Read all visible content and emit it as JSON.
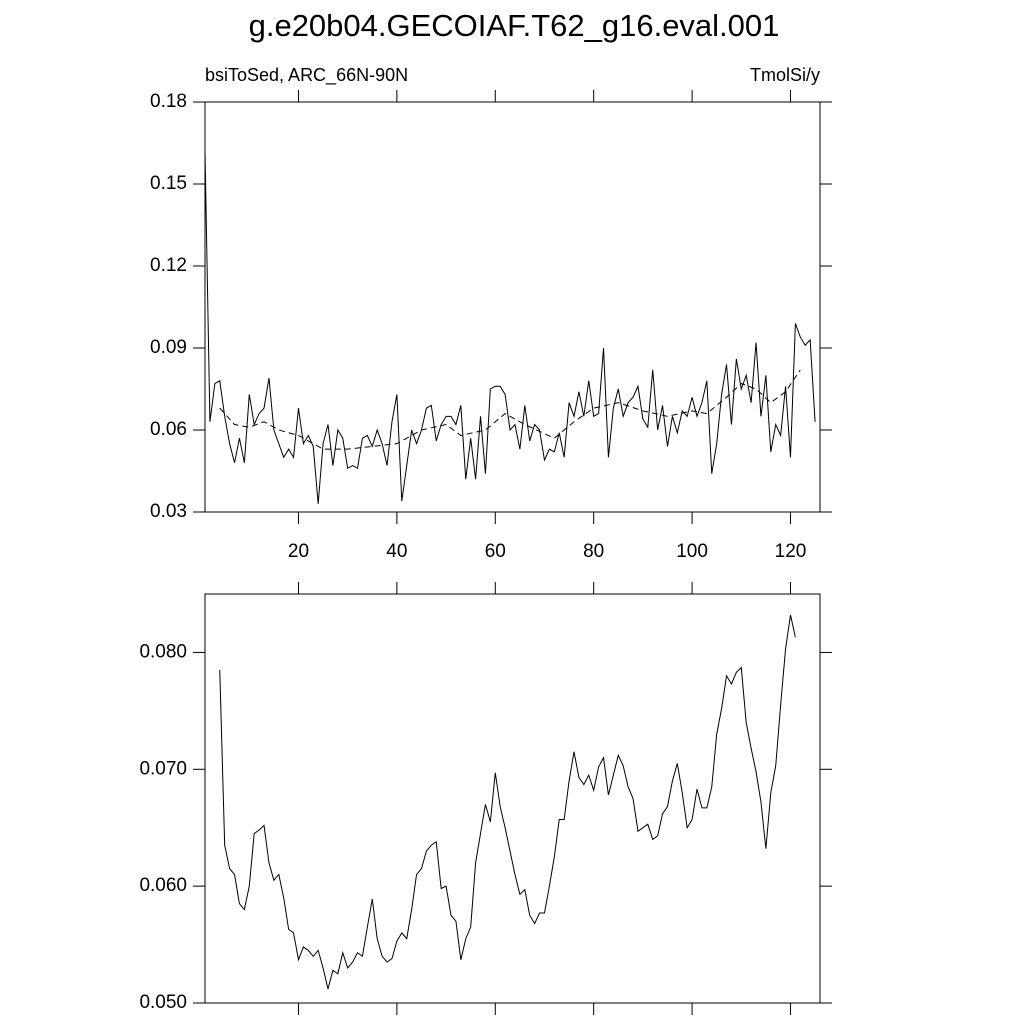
{
  "chart_data": [
    {
      "type": "line",
      "title": "g.e20b04.GECOIAF.T62_g16.eval.001",
      "subtitle_left": "bsiToSed, ARC_66N-90N",
      "subtitle_right": "TmolSi/y",
      "xlim": [
        1,
        126
      ],
      "ylim": [
        0.03,
        0.18
      ],
      "xticks": [
        20,
        40,
        60,
        80,
        100,
        120
      ],
      "yticks": [
        0.03,
        0.06,
        0.09,
        0.12,
        0.15,
        0.18
      ],
      "series": [
        {
          "color": "#000000",
          "dashed": false,
          "x": [
            1,
            2,
            3,
            4,
            5,
            6,
            7,
            8,
            9,
            10,
            11,
            12,
            13,
            14,
            15,
            16,
            17,
            18,
            19,
            20,
            21,
            22,
            23,
            24,
            25,
            26,
            27,
            28,
            29,
            30,
            31,
            32,
            33,
            34,
            35,
            36,
            37,
            38,
            39,
            40,
            41,
            42,
            43,
            44,
            45,
            46,
            47,
            48,
            49,
            50,
            51,
            52,
            53,
            54,
            55,
            56,
            57,
            58,
            59,
            60,
            61,
            62,
            63,
            64,
            65,
            66,
            67,
            68,
            69,
            70,
            71,
            72,
            73,
            74,
            75,
            76,
            77,
            78,
            79,
            80,
            81,
            82,
            83,
            84,
            85,
            86,
            87,
            88,
            89,
            90,
            91,
            92,
            93,
            94,
            95,
            96,
            97,
            98,
            99,
            100,
            101,
            102,
            103,
            104,
            105,
            106,
            107,
            108,
            109,
            110,
            111,
            112,
            113,
            114,
            115,
            116,
            117,
            118,
            119,
            120,
            121,
            122,
            123,
            124,
            125
          ],
          "values": [
            0.162,
            0.063,
            0.077,
            0.078,
            0.065,
            0.055,
            0.048,
            0.057,
            0.048,
            0.073,
            0.062,
            0.066,
            0.068,
            0.079,
            0.06,
            0.055,
            0.05,
            0.053,
            0.05,
            0.068,
            0.055,
            0.058,
            0.054,
            0.033,
            0.055,
            0.062,
            0.047,
            0.06,
            0.057,
            0.046,
            0.047,
            0.046,
            0.057,
            0.058,
            0.054,
            0.06,
            0.055,
            0.047,
            0.063,
            0.073,
            0.034,
            0.047,
            0.06,
            0.055,
            0.06,
            0.068,
            0.069,
            0.056,
            0.062,
            0.065,
            0.065,
            0.062,
            0.069,
            0.042,
            0.057,
            0.042,
            0.065,
            0.044,
            0.075,
            0.076,
            0.076,
            0.073,
            0.06,
            0.062,
            0.053,
            0.069,
            0.056,
            0.062,
            0.06,
            0.049,
            0.053,
            0.052,
            0.059,
            0.05,
            0.07,
            0.065,
            0.074,
            0.065,
            0.078,
            0.065,
            0.066,
            0.09,
            0.05,
            0.068,
            0.075,
            0.065,
            0.07,
            0.072,
            0.076,
            0.064,
            0.061,
            0.082,
            0.06,
            0.069,
            0.054,
            0.065,
            0.059,
            0.067,
            0.065,
            0.072,
            0.065,
            0.07,
            0.078,
            0.044,
            0.055,
            0.073,
            0.084,
            0.062,
            0.086,
            0.075,
            0.08,
            0.07,
            0.092,
            0.065,
            0.08,
            0.052,
            0.062,
            0.058,
            0.076,
            0.05,
            0.099,
            0.094,
            0.091,
            0.093,
            0.063
          ]
        },
        {
          "color": "#000000",
          "dashed": true,
          "x": [
            4,
            7,
            10,
            13,
            16,
            20,
            25,
            30,
            35,
            40,
            45,
            50,
            53,
            58,
            62,
            66,
            72,
            76,
            80,
            85,
            90,
            95,
            100,
            103,
            107,
            110,
            113,
            116,
            119,
            122
          ],
          "values": [
            0.068,
            0.062,
            0.061,
            0.063,
            0.06,
            0.058,
            0.053,
            0.053,
            0.054,
            0.055,
            0.06,
            0.062,
            0.058,
            0.06,
            0.066,
            0.062,
            0.057,
            0.063,
            0.068,
            0.07,
            0.067,
            0.065,
            0.067,
            0.066,
            0.072,
            0.077,
            0.075,
            0.07,
            0.074,
            0.082
          ]
        }
      ]
    },
    {
      "type": "line",
      "xlim": [
        1,
        126
      ],
      "ylim": [
        0.05,
        0.085
      ],
      "xticks": [
        20,
        40,
        60,
        80,
        100,
        120
      ],
      "yticks": [
        {
          "value": 0.05,
          "label": "0.050"
        },
        {
          "value": 0.06,
          "label": "0.060"
        },
        {
          "value": 0.07,
          "label": "0.070"
        },
        {
          "value": 0.08,
          "label": "0.080"
        }
      ],
      "series": [
        {
          "color": "#000000",
          "dashed": false,
          "x": [
            4,
            5,
            6,
            7,
            8,
            9,
            10,
            11,
            12,
            13,
            14,
            15,
            16,
            17,
            18,
            19,
            20,
            21,
            22,
            23,
            24,
            25,
            26,
            27,
            28,
            29,
            30,
            31,
            32,
            33,
            34,
            35,
            36,
            37,
            38,
            39,
            40,
            41,
            42,
            43,
            44,
            45,
            46,
            47,
            48,
            49,
            50,
            51,
            52,
            53,
            54,
            55,
            56,
            57,
            58,
            59,
            60,
            61,
            62,
            63,
            64,
            65,
            66,
            67,
            68,
            69,
            70,
            71,
            72,
            73,
            74,
            75,
            76,
            77,
            78,
            79,
            80,
            81,
            82,
            83,
            84,
            85,
            86,
            87,
            88,
            89,
            90,
            91,
            92,
            93,
            94,
            95,
            96,
            97,
            98,
            99,
            100,
            101,
            102,
            103,
            104,
            105,
            106,
            107,
            108,
            109,
            110,
            111,
            112,
            113,
            114,
            115,
            116,
            117,
            118,
            119,
            120,
            121
          ],
          "values": [
            0.0785,
            0.0635,
            0.0615,
            0.061,
            0.0585,
            0.058,
            0.06,
            0.0645,
            0.0648,
            0.0652,
            0.062,
            0.0605,
            0.061,
            0.059,
            0.0563,
            0.056,
            0.0537,
            0.0548,
            0.0545,
            0.054,
            0.0545,
            0.053,
            0.0512,
            0.0528,
            0.0525,
            0.0543,
            0.053,
            0.0535,
            0.0543,
            0.054,
            0.0565,
            0.0589,
            0.0555,
            0.054,
            0.0535,
            0.0538,
            0.0553,
            0.056,
            0.0555,
            0.058,
            0.061,
            0.0615,
            0.063,
            0.0635,
            0.0638,
            0.0598,
            0.06,
            0.0575,
            0.057,
            0.0537,
            0.0555,
            0.0565,
            0.062,
            0.0645,
            0.067,
            0.0655,
            0.0697,
            0.0668,
            0.065,
            0.063,
            0.061,
            0.0593,
            0.0597,
            0.0575,
            0.0568,
            0.0577,
            0.0577,
            0.06,
            0.0625,
            0.0657,
            0.0657,
            0.069,
            0.0715,
            0.0693,
            0.0687,
            0.0695,
            0.0682,
            0.0702,
            0.071,
            0.0678,
            0.0695,
            0.0712,
            0.0703,
            0.0685,
            0.0675,
            0.0647,
            0.065,
            0.0653,
            0.064,
            0.0643,
            0.0662,
            0.0668,
            0.069,
            0.0705,
            0.068,
            0.065,
            0.0657,
            0.0683,
            0.0667,
            0.0667,
            0.0685,
            0.073,
            0.0752,
            0.078,
            0.0773,
            0.0783,
            0.0787,
            0.074,
            0.0718,
            0.0698,
            0.0672,
            0.0632,
            0.068,
            0.0703,
            0.0755,
            0.0803,
            0.0832,
            0.0813
          ]
        }
      ]
    }
  ]
}
